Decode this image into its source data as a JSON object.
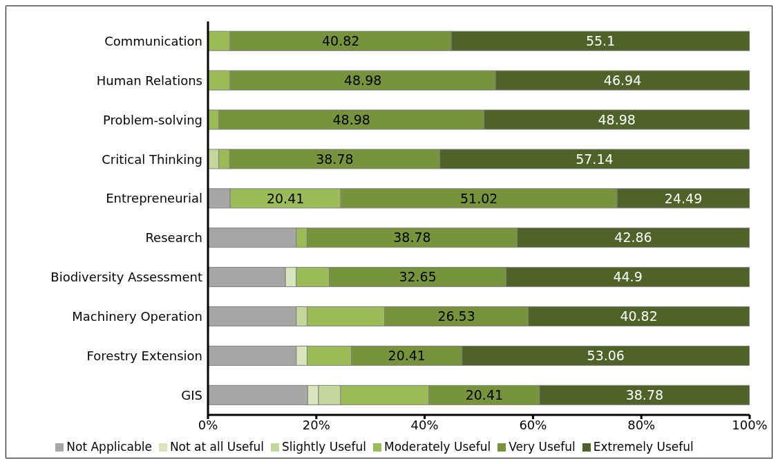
{
  "chart_data": {
    "type": "bar",
    "orientation": "horizontal",
    "stacked": true,
    "categories": [
      "Communication",
      "Human Relations",
      "Problem-solving",
      "Critical Thinking",
      "Entrepreneurial",
      "Research",
      "Biodiversity Assessment",
      "Machinery Operation",
      "Forestry Extension",
      "GIS"
    ],
    "series": [
      {
        "name": "Not Applicable",
        "color": "#a6a6a6",
        "values": [
          null,
          null,
          null,
          null,
          4.1,
          16.3,
          14.3,
          16.3,
          16.3,
          18.4
        ]
      },
      {
        "name": "Not at all Useful",
        "color": "#d8e4bc",
        "values": [
          null,
          null,
          null,
          null,
          null,
          null,
          2,
          null,
          2,
          2
        ]
      },
      {
        "name": "Slightly Useful",
        "color": "#c4d79b",
        "values": [
          null,
          null,
          null,
          2,
          null,
          null,
          null,
          2,
          null,
          4.1
        ]
      },
      {
        "name": "Moderately Useful",
        "color": "#9bbb59",
        "values": [
          4.1,
          4.1,
          2,
          2,
          20.41,
          2,
          6.1,
          14.3,
          8.2,
          16.3
        ],
        "value_labels": [
          null,
          null,
          null,
          null,
          "20.41",
          null,
          null,
          null,
          null,
          null
        ]
      },
      {
        "name": "Very Useful",
        "color": "#77933c",
        "values": [
          40.82,
          48.98,
          48.98,
          38.78,
          51.02,
          38.78,
          32.65,
          26.53,
          20.41,
          20.41
        ],
        "value_labels": [
          "40.82",
          "48.98",
          "48.98",
          "38.78",
          "51.02",
          "38.78",
          "32.65",
          "26.53",
          "20.41",
          "20.41"
        ]
      },
      {
        "name": "Extremely Useful",
        "color": "#4f6228",
        "values": [
          55.1,
          46.94,
          48.98,
          57.14,
          24.49,
          42.86,
          44.9,
          40.82,
          53.06,
          38.78
        ],
        "value_labels": [
          "55.1",
          "46.94",
          "48.98",
          "57.14",
          "24.49",
          "42.86",
          "44.9",
          "40.82",
          "53.06",
          "38.78"
        ]
      }
    ],
    "xlim": [
      0,
      100
    ],
    "xticks": [
      {
        "value": 0,
        "label": "0%"
      },
      {
        "value": 20,
        "label": "20%"
      },
      {
        "value": 40,
        "label": "40%"
      },
      {
        "value": 60,
        "label": "60%"
      },
      {
        "value": 80,
        "label": "80%"
      },
      {
        "value": 100,
        "label": "100%"
      }
    ],
    "grid": false,
    "legend": "bottom"
  }
}
